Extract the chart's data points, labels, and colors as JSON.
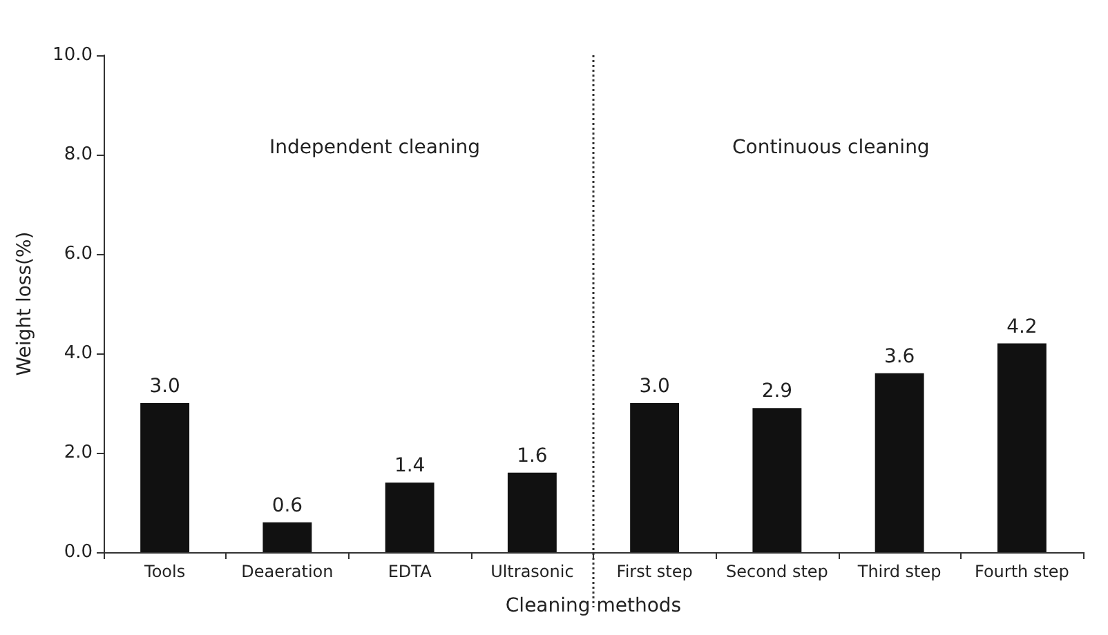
{
  "chart_data": {
    "type": "bar",
    "xlabel": "Cleaning methods",
    "ylabel": "Weight loss(%)",
    "categories": [
      "Tools",
      "Deaeration",
      "EDTA",
      "Ultrasonic",
      "First step",
      "Second step",
      "Third step",
      "Fourth step"
    ],
    "values": [
      3.0,
      0.6,
      1.4,
      1.6,
      3.0,
      2.9,
      3.6,
      4.2
    ],
    "value_labels": [
      "3.0",
      "0.6",
      "1.4",
      "1.6",
      "3.0",
      "2.9",
      "3.6",
      "4.2"
    ],
    "color": "#111111",
    "ylim": [
      0,
      10
    ],
    "yticks": [
      {
        "value": 0,
        "label": "0.0"
      },
      {
        "value": 2,
        "label": "2.0"
      },
      {
        "value": 4,
        "label": "4.0"
      },
      {
        "value": 6,
        "label": "6.0"
      },
      {
        "value": 8,
        "label": "8.0"
      },
      {
        "value": 10,
        "label": "10.0"
      }
    ],
    "annotations": [
      "Independent cleaning",
      "Continuous cleaning"
    ],
    "grid": false
  }
}
